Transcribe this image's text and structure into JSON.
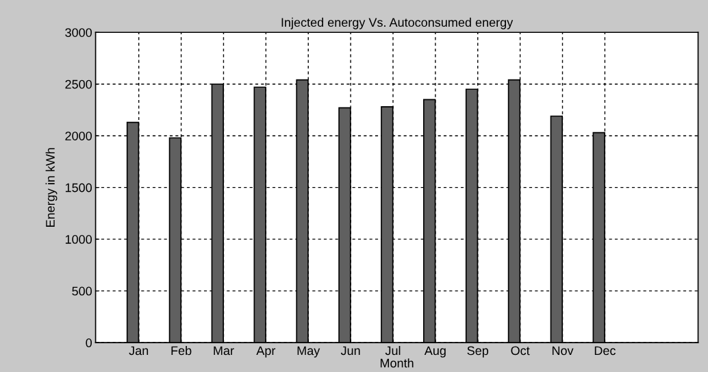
{
  "chart_data": {
    "type": "bar",
    "title": "Injected energy Vs. Autoconsumed energy",
    "xlabel": "Month",
    "ylabel": "Energy in kWh",
    "categories": [
      "Jan",
      "Feb",
      "Mar",
      "Apr",
      "May",
      "Jun",
      "Jul",
      "Aug",
      "Sep",
      "Oct",
      "Nov",
      "Dec"
    ],
    "values": [
      2130,
      1980,
      2500,
      2470,
      2540,
      2270,
      2280,
      2350,
      2450,
      2540,
      2190,
      2030
    ],
    "color": "#606060",
    "ylim": [
      0,
      3000
    ],
    "yticks": [
      0,
      500,
      1000,
      1500,
      2000,
      2500,
      3000
    ],
    "grid": true
  }
}
